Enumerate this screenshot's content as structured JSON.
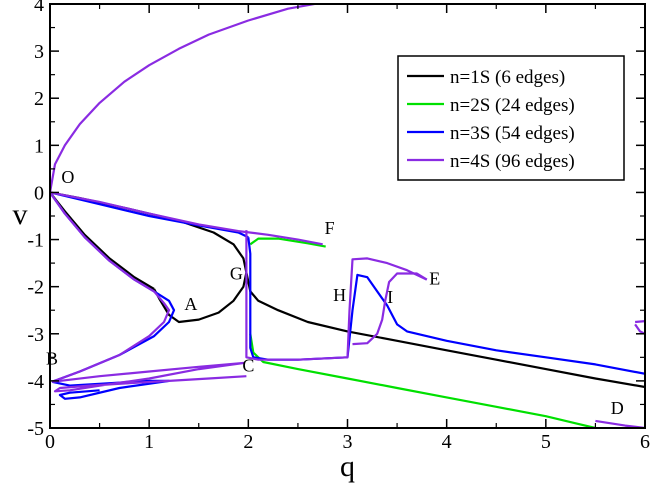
{
  "chart_data": {
    "type": "line",
    "xlabel": "q",
    "ylabel": "v",
    "xlim": [
      0,
      6
    ],
    "ylim": [
      -5,
      4
    ],
    "xticks": [
      "0",
      "1",
      "2",
      "3",
      "4",
      "5",
      "6"
    ],
    "yticks": [
      "-5",
      "-4",
      "-3",
      "-2",
      "-1",
      "0",
      "1",
      "2",
      "3",
      "4"
    ],
    "grid": false,
    "legend_position": "top-right",
    "annotations": [
      {
        "text": "O",
        "x": 0.18,
        "y": 0.2
      },
      {
        "text": "A",
        "x": 1.42,
        "y": -2.5
      },
      {
        "text": "B",
        "x": 0.02,
        "y": -3.65
      },
      {
        "text": "C",
        "x": 2.0,
        "y": -3.8
      },
      {
        "text": "D",
        "x": 5.72,
        "y": -4.7
      },
      {
        "text": "E",
        "x": 3.88,
        "y": -1.95
      },
      {
        "text": "F",
        "x": 2.82,
        "y": -0.88
      },
      {
        "text": "G",
        "x": 1.88,
        "y": -1.85
      },
      {
        "text": "H",
        "x": 2.92,
        "y": -2.3
      },
      {
        "text": "I",
        "x": 3.43,
        "y": -2.35
      }
    ],
    "series": [
      {
        "name": "n=1S (6 edges)",
        "color": "#000000",
        "segments": [
          [
            [
              0,
              0
            ],
            [
              0.3,
              -0.12
            ],
            [
              0.8,
              -0.35
            ],
            [
              1.3,
              -0.6
            ],
            [
              1.65,
              -0.85
            ],
            [
              1.85,
              -1.1
            ],
            [
              1.95,
              -1.4
            ],
            [
              1.98,
              -1.7
            ],
            [
              1.95,
              -2.0
            ],
            [
              1.85,
              -2.3
            ],
            [
              1.7,
              -2.55
            ],
            [
              1.5,
              -2.7
            ],
            [
              1.3,
              -2.75
            ],
            [
              1.2,
              -2.6
            ],
            [
              1.1,
              -2.25
            ],
            [
              1.05,
              -2.05
            ]
          ],
          [
            [
              0,
              0
            ],
            [
              0.15,
              -0.4
            ],
            [
              0.35,
              -0.9
            ],
            [
              0.6,
              -1.4
            ],
            [
              0.85,
              -1.8
            ],
            [
              1.05,
              -2.05
            ]
          ],
          [
            [
              1.98,
              -1.7
            ],
            [
              2.02,
              -2.1
            ],
            [
              2.1,
              -2.3
            ],
            [
              2.3,
              -2.5
            ],
            [
              2.6,
              -2.75
            ],
            [
              3.0,
              -2.95
            ],
            [
              3.5,
              -3.15
            ],
            [
              4.0,
              -3.35
            ],
            [
              4.5,
              -3.55
            ],
            [
              5.0,
              -3.75
            ],
            [
              5.5,
              -3.95
            ],
            [
              6.0,
              -4.13
            ]
          ]
        ]
      },
      {
        "name": "n=2S (24 edges)",
        "color": "#00e000",
        "segments": [
          [
            [
              2.02,
              -1.1
            ],
            [
              2.1,
              -0.98
            ],
            [
              2.3,
              -0.98
            ],
            [
              2.6,
              -1.08
            ],
            [
              2.78,
              -1.15
            ]
          ],
          [
            [
              2.02,
              -3.0
            ],
            [
              2.05,
              -3.4
            ],
            [
              2.15,
              -3.6
            ],
            [
              2.5,
              -3.75
            ],
            [
              3.0,
              -3.95
            ],
            [
              3.5,
              -4.15
            ],
            [
              4.0,
              -4.35
            ],
            [
              4.5,
              -4.55
            ],
            [
              5.0,
              -4.75
            ],
            [
              5.3,
              -4.9
            ],
            [
              5.5,
              -5.0
            ]
          ]
        ]
      },
      {
        "name": "n=3S (54 edges)",
        "color": "#0000ff",
        "segments": [
          [
            [
              0,
              0
            ],
            [
              0.5,
              -0.25
            ],
            [
              1.0,
              -0.5
            ],
            [
              1.5,
              -0.7
            ],
            [
              1.9,
              -0.85
            ],
            [
              2.0,
              -0.95
            ]
          ],
          [
            [
              0,
              0
            ],
            [
              0.15,
              -0.45
            ],
            [
              0.35,
              -0.95
            ],
            [
              0.6,
              -1.45
            ],
            [
              0.85,
              -1.85
            ],
            [
              1.05,
              -2.1
            ],
            [
              1.2,
              -2.3
            ],
            [
              1.25,
              -2.5
            ],
            [
              1.2,
              -2.75
            ],
            [
              1.05,
              -3.05
            ],
            [
              0.7,
              -3.45
            ],
            [
              0.3,
              -3.8
            ],
            [
              0.02,
              -4.02
            ]
          ],
          [
            [
              0.02,
              -4.02
            ],
            [
              0.2,
              -4.1
            ],
            [
              0.6,
              -4.05
            ],
            [
              1.0,
              -4.0
            ],
            [
              1.2,
              -4.0
            ],
            [
              0.7,
              -4.15
            ],
            [
              0.3,
              -4.35
            ],
            [
              0.15,
              -4.38
            ],
            [
              0.1,
              -4.3
            ],
            [
              0.2,
              -4.25
            ],
            [
              0.5,
              -4.2
            ]
          ],
          [
            [
              2.0,
              -0.95
            ],
            [
              2.02,
              -1.3
            ],
            [
              2.02,
              -2.0
            ],
            [
              2.02,
              -2.7
            ],
            [
              2.02,
              -3.3
            ],
            [
              2.05,
              -3.5
            ],
            [
              2.2,
              -3.55
            ],
            [
              2.5,
              -3.55
            ],
            [
              3.0,
              -3.5
            ],
            [
              3.05,
              -2.5
            ],
            [
              3.1,
              -1.75
            ],
            [
              3.2,
              -1.8
            ],
            [
              3.3,
              -2.1
            ],
            [
              3.4,
              -2.4
            ],
            [
              3.45,
              -2.6
            ],
            [
              3.5,
              -2.8
            ],
            [
              3.6,
              -2.95
            ],
            [
              4.0,
              -3.15
            ],
            [
              4.5,
              -3.35
            ],
            [
              5.0,
              -3.5
            ],
            [
              5.5,
              -3.65
            ],
            [
              6.0,
              -3.85
            ]
          ]
        ]
      },
      {
        "name": "n=4S (96 edges)",
        "color": "#8a2be2",
        "segments": [
          [
            [
              0,
              0
            ],
            [
              0.05,
              0.6
            ],
            [
              0.15,
              1.0
            ],
            [
              0.3,
              1.45
            ],
            [
              0.5,
              1.9
            ],
            [
              0.75,
              2.35
            ],
            [
              1.0,
              2.7
            ],
            [
              1.3,
              3.05
            ],
            [
              1.6,
              3.35
            ],
            [
              2.0,
              3.65
            ],
            [
              2.4,
              3.9
            ],
            [
              2.8,
              4.05
            ]
          ],
          [
            [
              0,
              0
            ],
            [
              0.15,
              -0.45
            ],
            [
              0.35,
              -0.95
            ],
            [
              0.6,
              -1.45
            ],
            [
              0.85,
              -1.85
            ],
            [
              1.05,
              -2.1
            ],
            [
              1.15,
              -2.35
            ],
            [
              1.2,
              -2.5
            ],
            [
              1.15,
              -2.75
            ],
            [
              1.0,
              -3.05
            ],
            [
              0.7,
              -3.45
            ],
            [
              0.3,
              -3.8
            ],
            [
              0.02,
              -4.02
            ]
          ],
          [
            [
              0.02,
              -4.02
            ],
            [
              0.5,
              -3.9
            ],
            [
              1.0,
              -3.8
            ],
            [
              1.5,
              -3.7
            ],
            [
              1.95,
              -3.62
            ],
            [
              1.5,
              -3.75
            ],
            [
              1.0,
              -3.95
            ],
            [
              0.5,
              -4.1
            ],
            [
              0.2,
              -4.2
            ],
            [
              0.05,
              -4.22
            ],
            [
              0.1,
              -4.15
            ],
            [
              0.4,
              -4.1
            ],
            [
              0.8,
              -4.05
            ],
            [
              1.2,
              -4.0
            ],
            [
              1.6,
              -3.95
            ],
            [
              1.98,
              -3.9
            ]
          ],
          [
            [
              0,
              0
            ],
            [
              0.5,
              -0.2
            ],
            [
              1.0,
              -0.45
            ],
            [
              1.5,
              -0.68
            ],
            [
              1.9,
              -0.82
            ],
            [
              2.2,
              -0.9
            ],
            [
              2.5,
              -1.0
            ],
            [
              2.75,
              -1.1
            ]
          ],
          [
            [
              1.98,
              -0.8
            ],
            [
              1.98,
              -1.3
            ],
            [
              1.98,
              -2.0
            ],
            [
              1.98,
              -2.8
            ],
            [
              1.98,
              -3.5
            ],
            [
              2.1,
              -3.55
            ],
            [
              2.5,
              -3.55
            ],
            [
              3.0,
              -3.5
            ],
            [
              3.02,
              -2.5
            ],
            [
              3.05,
              -1.42
            ],
            [
              3.2,
              -1.4
            ],
            [
              3.4,
              -1.5
            ],
            [
              3.6,
              -1.65
            ],
            [
              3.8,
              -1.85
            ]
          ],
          [
            [
              3.05,
              -3.22
            ],
            [
              3.2,
              -3.2
            ],
            [
              3.3,
              -3.0
            ],
            [
              3.35,
              -2.7
            ],
            [
              3.38,
              -2.3
            ],
            [
              3.42,
              -1.9
            ],
            [
              3.5,
              -1.72
            ],
            [
              3.7,
              -1.72
            ],
            [
              3.8,
              -1.85
            ]
          ],
          [
            [
              5.9,
              -2.75
            ],
            [
              6.0,
              -2.73
            ]
          ],
          [
            [
              5.9,
              -2.8
            ],
            [
              5.95,
              -2.95
            ],
            [
              6.0,
              -3.0
            ]
          ],
          [
            [
              5.5,
              -4.85
            ],
            [
              5.8,
              -4.95
            ],
            [
              6.0,
              -5.0
            ]
          ]
        ]
      }
    ]
  }
}
